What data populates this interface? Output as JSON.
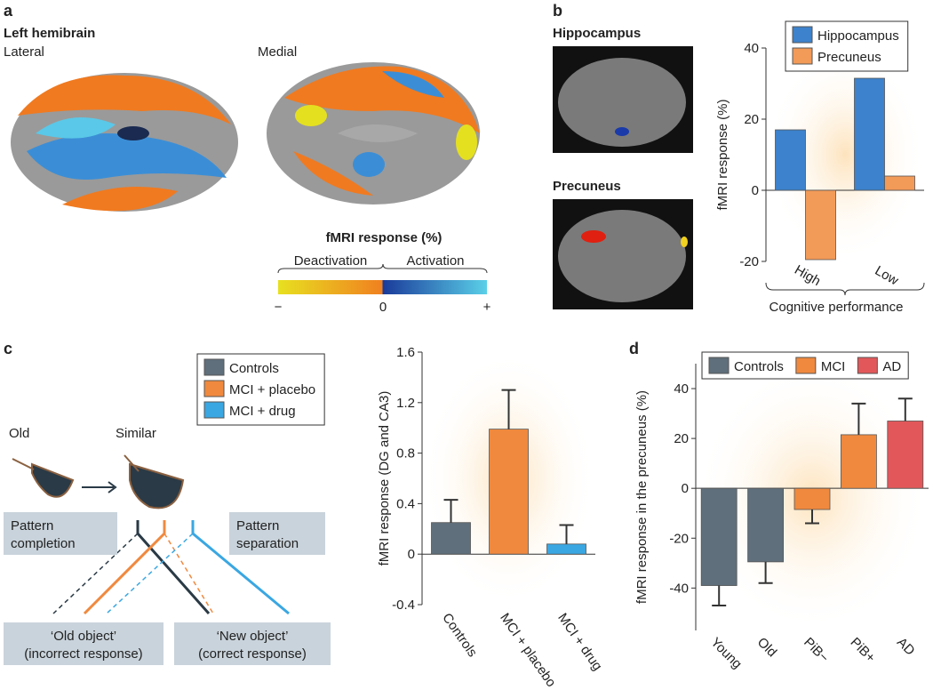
{
  "panels": [
    "a",
    "b",
    "c",
    "d"
  ],
  "brain": {
    "heading": "Left hemibrain",
    "views": [
      "Lateral",
      "Medial"
    ],
    "colorbar_title": "fMRI response (%)",
    "deactivation": "Deactivation",
    "activation": "Activation",
    "colorbar_ticks": [
      "−",
      "0",
      "+"
    ]
  },
  "mri": [
    "Hippocampus",
    "Precuneus"
  ],
  "diagram": {
    "old": "Old",
    "similar": "Similar",
    "completion": [
      "Pattern",
      "completion"
    ],
    "separation": [
      "Pattern",
      "separation"
    ],
    "old_object": [
      "‘Old object’",
      "(incorrect response)"
    ],
    "new_object": [
      "‘New object’",
      "(correct response)"
    ]
  },
  "chart_data": [
    {
      "type": "bar",
      "ylabel": "fMRI response (%)",
      "xlabel": "Cognitive performance",
      "categories": [
        "High",
        "Low"
      ],
      "series": [
        {
          "name": "Hippocampus",
          "color": "#3d82cc",
          "values": [
            17,
            31.5
          ]
        },
        {
          "name": "Precuneus",
          "color": "#f29a58",
          "values": [
            -19.5,
            4
          ]
        }
      ],
      "ylim": [
        -20,
        40
      ],
      "yticks": [
        -20,
        0,
        20,
        40
      ],
      "legend": "top-right"
    },
    {
      "type": "bar",
      "ylabel": "fMRI response (DG and CA3)",
      "categories": [
        "Controls",
        "MCI + placebo",
        "MCI + drug"
      ],
      "values": [
        0.25,
        0.99,
        0.08
      ],
      "errors": [
        0.18,
        0.31,
        0.15
      ],
      "colors": [
        "#5f6f7b",
        "#f0893e",
        "#3aa7e2"
      ],
      "ylim": [
        -0.4,
        1.6
      ],
      "yticks": [
        -0.4,
        0,
        0.4,
        0.8,
        1.2,
        1.6
      ]
    },
    {
      "type": "bar",
      "ylabel": "fMRI response in the precuneus (%)",
      "categories": [
        "Young",
        "Old",
        "PiB−",
        "PiB+",
        "AD"
      ],
      "values": [
        -39,
        -29.5,
        -8.5,
        21.5,
        27
      ],
      "errors": [
        8,
        8.5,
        5.5,
        12.5,
        9
      ],
      "colors": [
        "#5f6f7b",
        "#5f6f7b",
        "#f0893e",
        "#f0893e",
        "#e2585a"
      ],
      "legend": [
        {
          "name": "Controls",
          "color": "#5f6f7b"
        },
        {
          "name": "MCI",
          "color": "#f0893e"
        },
        {
          "name": "AD",
          "color": "#e2585a"
        }
      ],
      "ylim": [
        -57,
        50
      ],
      "yticks": [
        -40,
        -20,
        0,
        20,
        40
      ]
    }
  ]
}
